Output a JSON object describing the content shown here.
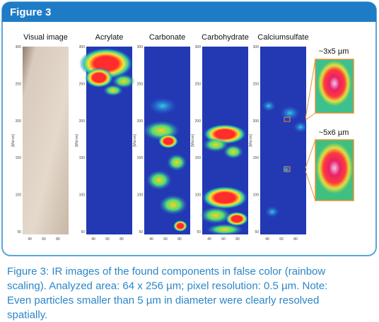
{
  "header": {
    "title": "Figure 3"
  },
  "panels": [
    {
      "label": "Visual image"
    },
    {
      "label": "Acrylate"
    },
    {
      "label": "Carbonate"
    },
    {
      "label": "Carbohydrate"
    },
    {
      "label": "Calciumsulfate"
    }
  ],
  "axes": {
    "y_label": "[Micron]",
    "y_ticks": [
      "300",
      "250",
      "200",
      "150",
      "100",
      "50"
    ],
    "x_ticks": [
      "40",
      "60",
      "80"
    ]
  },
  "insets": [
    {
      "label": "~3x5 µm"
    },
    {
      "label": "~5x6 µm"
    }
  ],
  "caption": {
    "lines": [
      "Figure 3: IR images of the found components in false color (rainbow",
      "scaling). Analyzed area: 64 x 256 µm; pixel resolution: 0.5 µm. Note:",
      "Even particles smaller than 5 µm in diameter were clearly resolved",
      "spatially."
    ]
  }
}
